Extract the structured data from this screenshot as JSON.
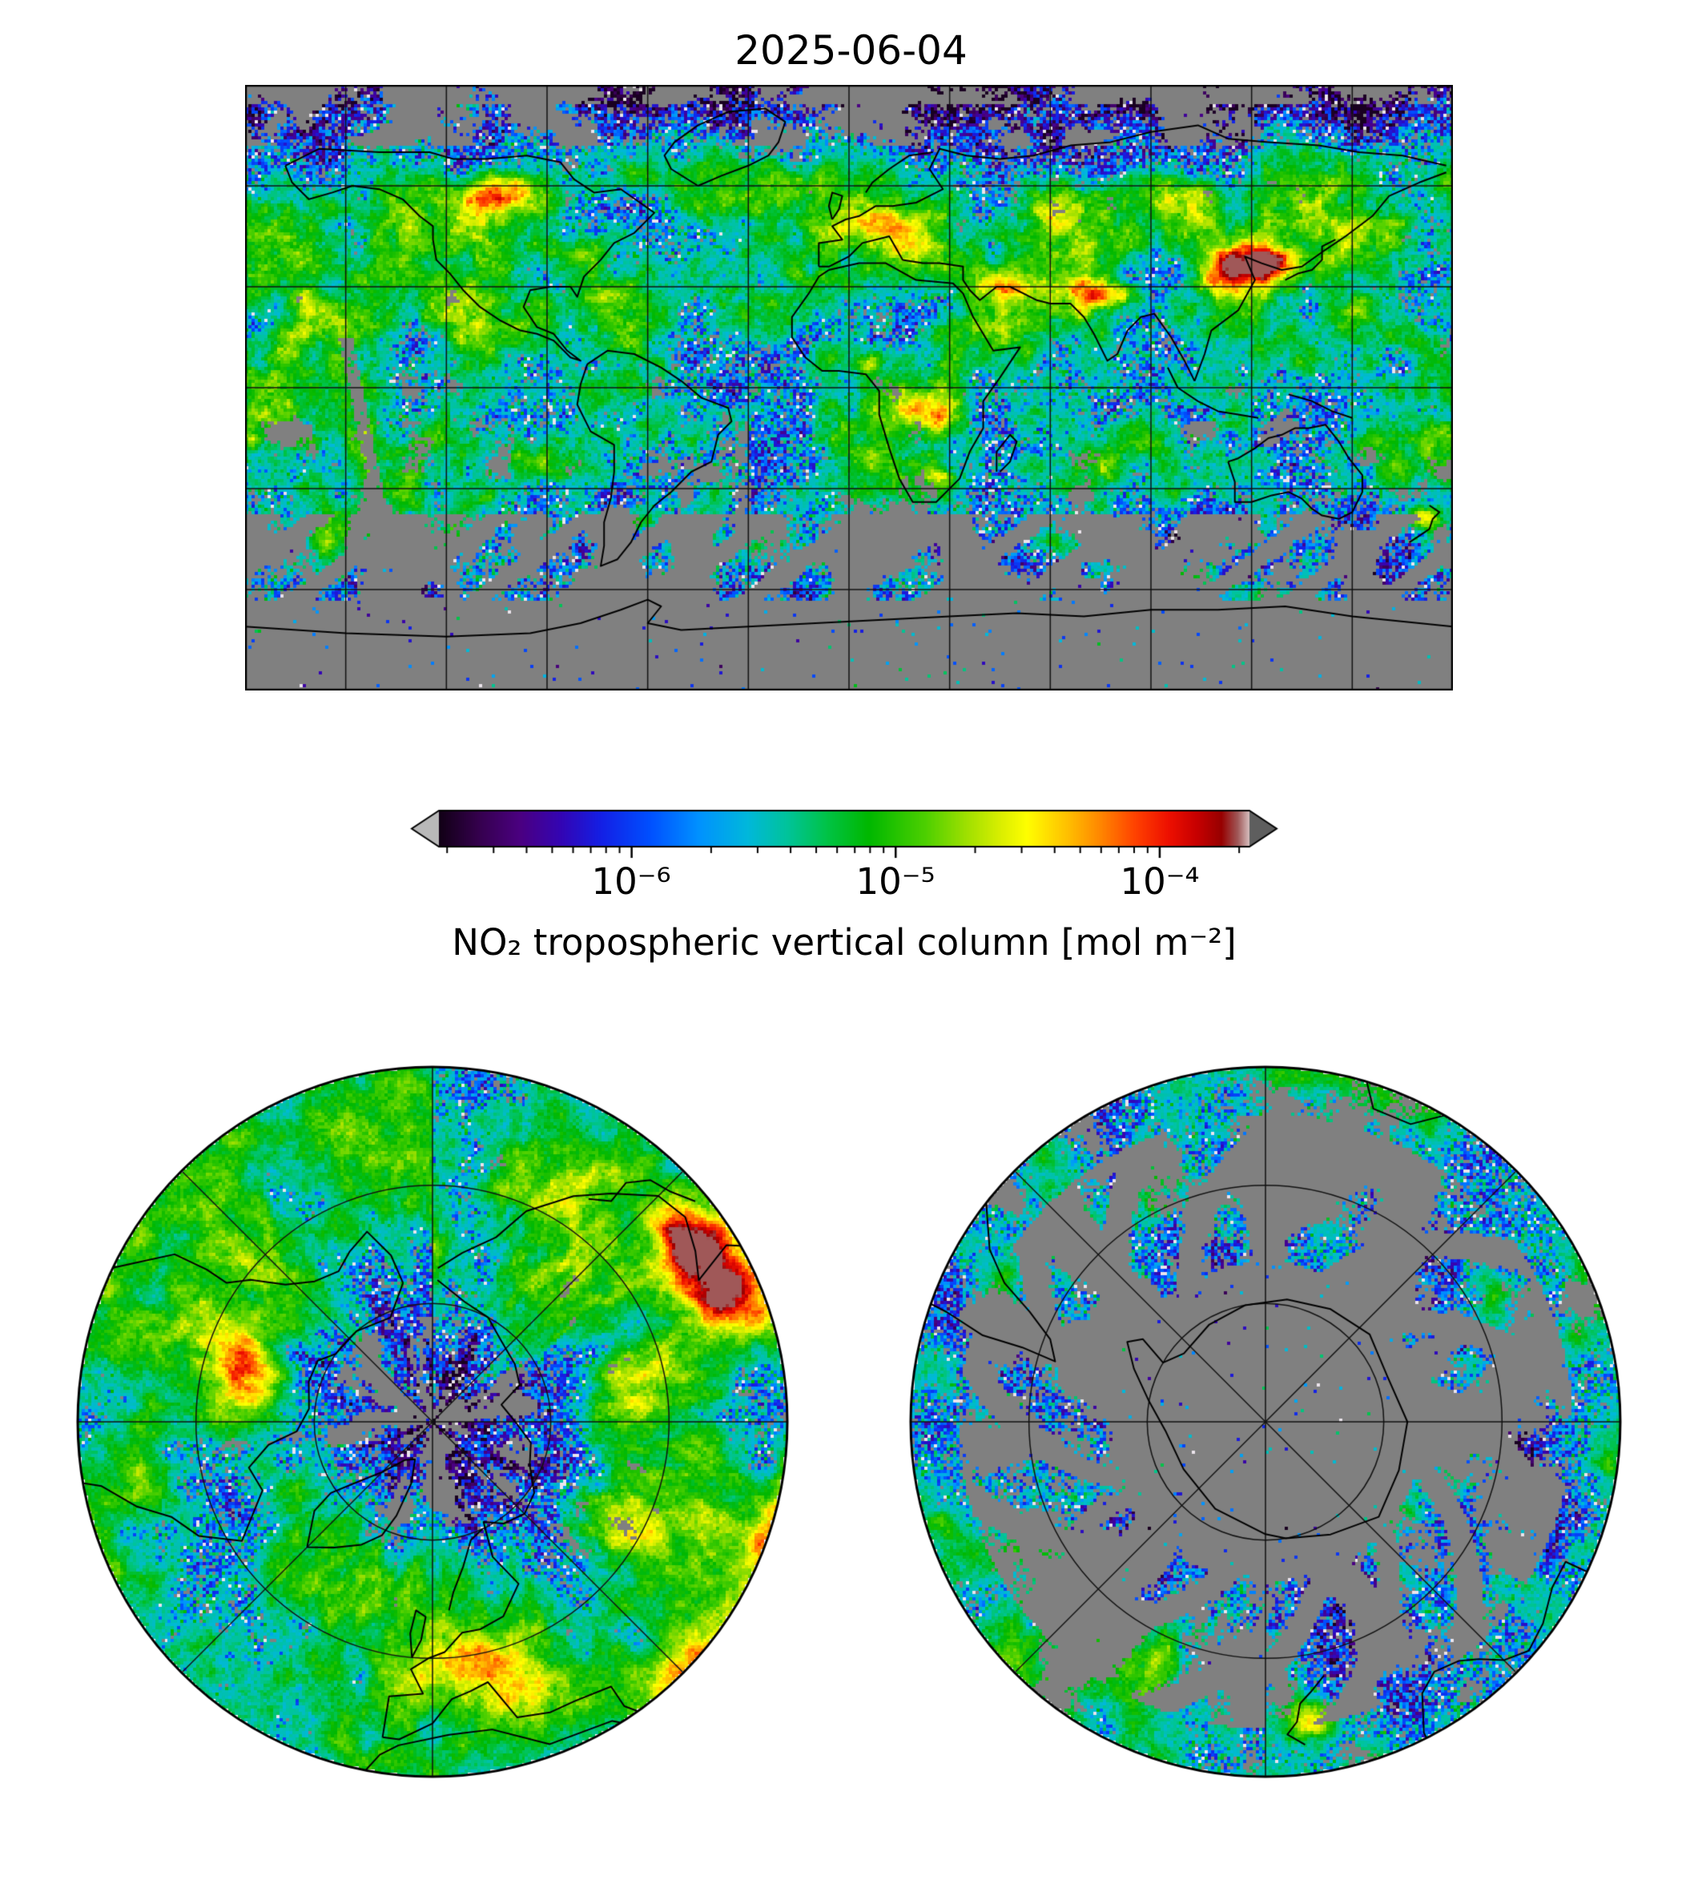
{
  "figure": {
    "title": "2025-06-04",
    "background_color": "#ffffff",
    "colorbar": {
      "label": "NO₂ tropospheric vertical column [mol m⁻²]",
      "scale": "log",
      "tick_labels": [
        "10⁻⁶",
        "10⁻⁵",
        "10⁻⁴"
      ],
      "under_arrow_color": "#b9b9b9",
      "over_arrow_color": "#5e5e5e"
    }
  },
  "chart_data": {
    "type": "heatmap",
    "title": "2025-06-04",
    "variable": "NO₂ tropospheric vertical column",
    "units": "mol m⁻²",
    "scale": "log",
    "colorbar_tick_values": [
      1e-06,
      1e-05,
      0.0001
    ],
    "colorbar_range_log10": [
      -6.73,
      -3.66
    ],
    "no_data_color": "#808080",
    "panels": [
      {
        "name": "global",
        "projection": "equirectangular",
        "lon_range": [
          -180,
          180
        ],
        "lat_range": [
          -90,
          90
        ],
        "gridline_spacing_deg": 30
      },
      {
        "name": "north-polar",
        "projection": "north-polar-azimuthal",
        "edge_latitude": 30,
        "meridian_spacing_deg": 45,
        "parallel_circle_latitudes": [
          70,
          50
        ]
      },
      {
        "name": "south-polar",
        "projection": "south-polar-azimuthal",
        "edge_latitude": -30,
        "meridian_spacing_deg": 45,
        "parallel_circle_latitudes": [
          -70,
          -50
        ]
      }
    ],
    "colormap_stops": [
      [
        0.0,
        "#120016"
      ],
      [
        0.05,
        "#36004f"
      ],
      [
        0.1,
        "#4b0082"
      ],
      [
        0.15,
        "#3405b4"
      ],
      [
        0.2,
        "#1420e6"
      ],
      [
        0.26,
        "#0050ff"
      ],
      [
        0.32,
        "#0092ff"
      ],
      [
        0.38,
        "#00b8dc"
      ],
      [
        0.43,
        "#00c49a"
      ],
      [
        0.48,
        "#00c344"
      ],
      [
        0.53,
        "#00b800"
      ],
      [
        0.6,
        "#4ed000"
      ],
      [
        0.65,
        "#9fe000"
      ],
      [
        0.695,
        "#def000"
      ],
      [
        0.725,
        "#ffff00"
      ],
      [
        0.775,
        "#ffc000"
      ],
      [
        0.815,
        "#ff8800"
      ],
      [
        0.86,
        "#ff4000"
      ],
      [
        0.9,
        "#ee1000"
      ],
      [
        0.935,
        "#c70000"
      ],
      [
        0.965,
        "#970000"
      ],
      [
        0.985,
        "#a05858"
      ],
      [
        1.0,
        "#d9c2c2"
      ]
    ],
    "high_no2_regions": [
      {
        "name": "eastern-china",
        "lon": 117,
        "lat": 36,
        "amp": 0.5,
        "rx": 10,
        "ry": 7
      },
      {
        "name": "korea-japan",
        "lon": 128,
        "lat": 38,
        "amp": 0.25,
        "rx": 7,
        "ry": 5
      },
      {
        "name": "northern-india",
        "lon": 78,
        "lat": 28,
        "amp": 0.4,
        "rx": 9,
        "ry": 4
      },
      {
        "name": "persian-gulf",
        "lon": 47,
        "lat": 30,
        "amp": 0.24,
        "rx": 8,
        "ry": 5
      },
      {
        "name": "europe",
        "lon": 12,
        "lat": 50,
        "amp": 0.18,
        "rx": 14,
        "ry": 6
      },
      {
        "name": "eastern-us",
        "lon": -80,
        "lat": 40,
        "amp": 0.22,
        "rx": 9,
        "ry": 5
      },
      {
        "name": "canada-fires",
        "lon": -105,
        "lat": 57,
        "amp": 0.38,
        "rx": 12,
        "ry": 6
      },
      {
        "name": "siberia",
        "lon": 95,
        "lat": 55,
        "amp": 0.26,
        "rx": 16,
        "ry": 8
      },
      {
        "name": "central-africa-burning",
        "lon": 22,
        "lat": -7,
        "amp": 0.38,
        "rx": 11,
        "ry": 6
      },
      {
        "name": "nigeria",
        "lon": 6,
        "lat": 8,
        "amp": 0.16,
        "rx": 5,
        "ry": 3
      },
      {
        "name": "south-africa-highveld",
        "lon": 28,
        "lat": -26,
        "amp": 0.22,
        "rx": 4,
        "ry": 3
      },
      {
        "name": "new-zealand",
        "lon": 171,
        "lat": -39,
        "amp": 0.45,
        "rx": 5,
        "ry": 4
      },
      {
        "name": "southern-south-america",
        "lon": -61,
        "lat": -39,
        "amp": 0.28,
        "rx": 5,
        "ry": 4
      },
      {
        "name": "mexico-city",
        "lon": -99,
        "lat": 19,
        "amp": 0.12,
        "rx": 3,
        "ry": 2
      },
      {
        "name": "urals-kazakhstan",
        "lon": 60,
        "lat": 52,
        "amp": 0.15,
        "rx": 10,
        "ry": 6
      }
    ]
  }
}
